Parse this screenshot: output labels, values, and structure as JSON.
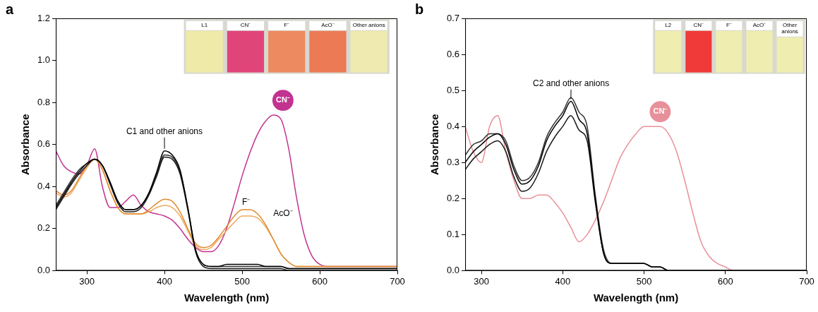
{
  "chart_data": [
    {
      "type": "line",
      "panel": "a",
      "x_label": "Wavelength (nm)",
      "y_label": "Absorbance",
      "x": [
        260,
        270,
        280,
        290,
        300,
        310,
        320,
        330,
        340,
        350,
        360,
        370,
        380,
        390,
        400,
        410,
        420,
        430,
        440,
        450,
        460,
        470,
        480,
        490,
        500,
        510,
        520,
        530,
        540,
        550,
        560,
        570,
        580,
        590,
        600,
        610,
        620,
        630,
        640,
        650,
        660,
        670,
        680,
        690,
        700
      ],
      "xlim": [
        260,
        700
      ],
      "xticks": [
        300,
        400,
        500,
        600,
        700
      ],
      "ylim": [
        0,
        1.2
      ],
      "yticks": [
        {
          "value": 0,
          "label": "0.0"
        },
        {
          "value": 0.2,
          "label": "0.2"
        },
        {
          "value": 0.4,
          "label": "0.4"
        },
        {
          "value": 0.6,
          "label": "0.6"
        },
        {
          "value": 0.8,
          "label": "0.8"
        },
        {
          "value": 1.0,
          "label": "1.0"
        },
        {
          "value": 1.2,
          "label": "1.2"
        }
      ],
      "grid": false,
      "inset": {
        "labels": [
          "L1",
          "CN⁻",
          "F⁻",
          "AcO⁻",
          "Other anions"
        ]
      },
      "series": [
        {
          "name": "C1 and other anions",
          "color": "#000000",
          "values": [
            0.3,
            0.36,
            0.42,
            0.47,
            0.51,
            0.53,
            0.5,
            0.42,
            0.33,
            0.29,
            0.29,
            0.31,
            0.37,
            0.47,
            0.57,
            0.55,
            0.48,
            0.3,
            0.1,
            0.03,
            0.02,
            0.02,
            0.03,
            0.03,
            0.03,
            0.03,
            0.03,
            0.02,
            0.02,
            0.02,
            0.01,
            0.01,
            0.01,
            0.01,
            0.01,
            0.01,
            0.01,
            0.01,
            0.01,
            0.01,
            0.01,
            0.01,
            0.01,
            0.01,
            0.01
          ]
        },
        {
          "color": "#1a1a1a",
          "values": [
            0.29,
            0.35,
            0.41,
            0.46,
            0.5,
            0.53,
            0.5,
            0.41,
            0.32,
            0.28,
            0.28,
            0.3,
            0.36,
            0.45,
            0.54,
            0.53,
            0.46,
            0.29,
            0.09,
            0.02,
            0.01,
            0.01,
            0.01,
            0.01,
            0.01,
            0.01,
            0.01,
            0.01,
            0.01,
            0.01,
            0.0,
            0.0,
            0.0,
            0.0,
            0.0,
            0.0,
            0.0,
            0.0,
            0.0,
            0.0,
            0.0,
            0.0,
            0.0,
            0.0,
            0.0
          ]
        },
        {
          "color": "#333333",
          "values": [
            0.31,
            0.37,
            0.43,
            0.48,
            0.51,
            0.53,
            0.5,
            0.42,
            0.33,
            0.29,
            0.29,
            0.31,
            0.37,
            0.46,
            0.55,
            0.54,
            0.47,
            0.3,
            0.1,
            0.03,
            0.02,
            0.02,
            0.02,
            0.02,
            0.02,
            0.02,
            0.02,
            0.02,
            0.02,
            0.02,
            0.01,
            0.01,
            0.01,
            0.01,
            0.01,
            0.01,
            0.01,
            0.01,
            0.01,
            0.01,
            0.01,
            0.01,
            0.01,
            0.01,
            0.01
          ]
        },
        {
          "name": "F⁻",
          "color": "#e08a2c",
          "values": [
            0.38,
            0.36,
            0.38,
            0.44,
            0.5,
            0.53,
            0.48,
            0.38,
            0.3,
            0.27,
            0.27,
            0.27,
            0.29,
            0.32,
            0.34,
            0.33,
            0.28,
            0.2,
            0.13,
            0.11,
            0.12,
            0.16,
            0.21,
            0.26,
            0.29,
            0.29,
            0.27,
            0.22,
            0.15,
            0.08,
            0.04,
            0.02,
            0.02,
            0.02,
            0.02,
            0.02,
            0.02,
            0.02,
            0.02,
            0.02,
            0.02,
            0.02,
            0.02,
            0.02,
            0.02
          ]
        },
        {
          "name": "AcO⁻",
          "color": "#f0a860",
          "values": [
            0.37,
            0.35,
            0.37,
            0.43,
            0.49,
            0.53,
            0.48,
            0.38,
            0.3,
            0.27,
            0.27,
            0.27,
            0.28,
            0.3,
            0.31,
            0.3,
            0.26,
            0.19,
            0.12,
            0.1,
            0.11,
            0.15,
            0.19,
            0.23,
            0.26,
            0.26,
            0.25,
            0.21,
            0.15,
            0.08,
            0.04,
            0.02,
            0.02,
            0.02,
            0.02,
            0.02,
            0.02,
            0.02,
            0.02,
            0.02,
            0.02,
            0.02,
            0.02,
            0.02,
            0.02
          ]
        },
        {
          "name": "CN⁻",
          "color": "#c2338f",
          "values": [
            0.57,
            0.5,
            0.47,
            0.46,
            0.5,
            0.58,
            0.4,
            0.3,
            0.3,
            0.33,
            0.36,
            0.31,
            0.28,
            0.27,
            0.26,
            0.24,
            0.2,
            0.15,
            0.11,
            0.09,
            0.09,
            0.12,
            0.2,
            0.32,
            0.45,
            0.56,
            0.65,
            0.71,
            0.74,
            0.72,
            0.58,
            0.35,
            0.17,
            0.07,
            0.03,
            0.02,
            0.02,
            0.02,
            0.02,
            0.02,
            0.02,
            0.02,
            0.02,
            0.02,
            0.02
          ]
        }
      ]
    },
    {
      "type": "line",
      "panel": "b",
      "x_label": "Wavelength (nm)",
      "y_label": "Absorbance",
      "x": [
        280,
        290,
        300,
        310,
        320,
        330,
        340,
        350,
        360,
        370,
        380,
        390,
        400,
        410,
        420,
        430,
        440,
        450,
        460,
        470,
        480,
        490,
        500,
        510,
        520,
        530,
        540,
        550,
        560,
        570,
        580,
        590,
        600,
        610,
        620,
        630,
        640,
        650,
        660,
        670,
        680,
        690,
        700
      ],
      "xlim": [
        280,
        700
      ],
      "xticks": [
        300,
        400,
        500,
        600,
        700
      ],
      "ylim": [
        0,
        0.7
      ],
      "yticks": [
        {
          "value": 0,
          "label": "0.0"
        },
        {
          "value": 0.1,
          "label": "0.1"
        },
        {
          "value": 0.2,
          "label": "0.2"
        },
        {
          "value": 0.3,
          "label": "0.3"
        },
        {
          "value": 0.4,
          "label": "0.4"
        },
        {
          "value": 0.5,
          "label": "0.5"
        },
        {
          "value": 0.6,
          "label": "0.6"
        },
        {
          "value": 0.7,
          "label": "0.7"
        }
      ],
      "grid": false,
      "inset": {
        "labels": [
          "L2",
          "CN⁻",
          "F⁻",
          "AcO⁻",
          "Other anions"
        ]
      },
      "series": [
        {
          "name": "C2 and other anions",
          "color": "#000000",
          "values": [
            0.3,
            0.33,
            0.35,
            0.37,
            0.38,
            0.35,
            0.28,
            0.24,
            0.25,
            0.29,
            0.36,
            0.4,
            0.43,
            0.47,
            0.42,
            0.38,
            0.2,
            0.05,
            0.02,
            0.02,
            0.02,
            0.02,
            0.02,
            0.01,
            0.01,
            0.0,
            0.0,
            0.0,
            0.0,
            0.0,
            0.0,
            0.0,
            0.0,
            0.0,
            0.0,
            0.0,
            0.0,
            0.0,
            0.0,
            0.0,
            0.0,
            0.0,
            0.0
          ]
        },
        {
          "color": "#1a1a1a",
          "values": [
            0.28,
            0.31,
            0.33,
            0.35,
            0.36,
            0.33,
            0.26,
            0.22,
            0.23,
            0.27,
            0.33,
            0.37,
            0.4,
            0.43,
            0.39,
            0.36,
            0.19,
            0.05,
            0.02,
            0.02,
            0.02,
            0.02,
            0.02,
            0.01,
            0.01,
            0.0,
            0.0,
            0.0,
            0.0,
            0.0,
            0.0,
            0.0,
            0.0,
            0.0,
            0.0,
            0.0,
            0.0,
            0.0,
            0.0,
            0.0,
            0.0,
            0.0,
            0.0
          ]
        },
        {
          "color": "#333333",
          "values": [
            0.32,
            0.35,
            0.36,
            0.38,
            0.38,
            0.36,
            0.29,
            0.25,
            0.26,
            0.3,
            0.37,
            0.41,
            0.44,
            0.48,
            0.44,
            0.4,
            0.21,
            0.06,
            0.02,
            0.02,
            0.02,
            0.02,
            0.02,
            0.01,
            0.01,
            0.0,
            0.0,
            0.0,
            0.0,
            0.0,
            0.0,
            0.0,
            0.0,
            0.0,
            0.0,
            0.0,
            0.0,
            0.0,
            0.0,
            0.0,
            0.0,
            0.0,
            0.0
          ]
        },
        {
          "name": "CN⁻",
          "color": "#e8909a",
          "values": [
            0.4,
            0.33,
            0.3,
            0.4,
            0.43,
            0.33,
            0.25,
            0.2,
            0.2,
            0.21,
            0.21,
            0.19,
            0.16,
            0.12,
            0.08,
            0.1,
            0.14,
            0.19,
            0.25,
            0.31,
            0.35,
            0.38,
            0.4,
            0.4,
            0.4,
            0.38,
            0.33,
            0.25,
            0.16,
            0.08,
            0.04,
            0.02,
            0.01,
            0.0,
            0.0,
            0.0,
            0.0,
            0.0,
            0.0,
            0.0,
            0.0,
            0.0,
            0.0
          ]
        }
      ]
    }
  ]
}
